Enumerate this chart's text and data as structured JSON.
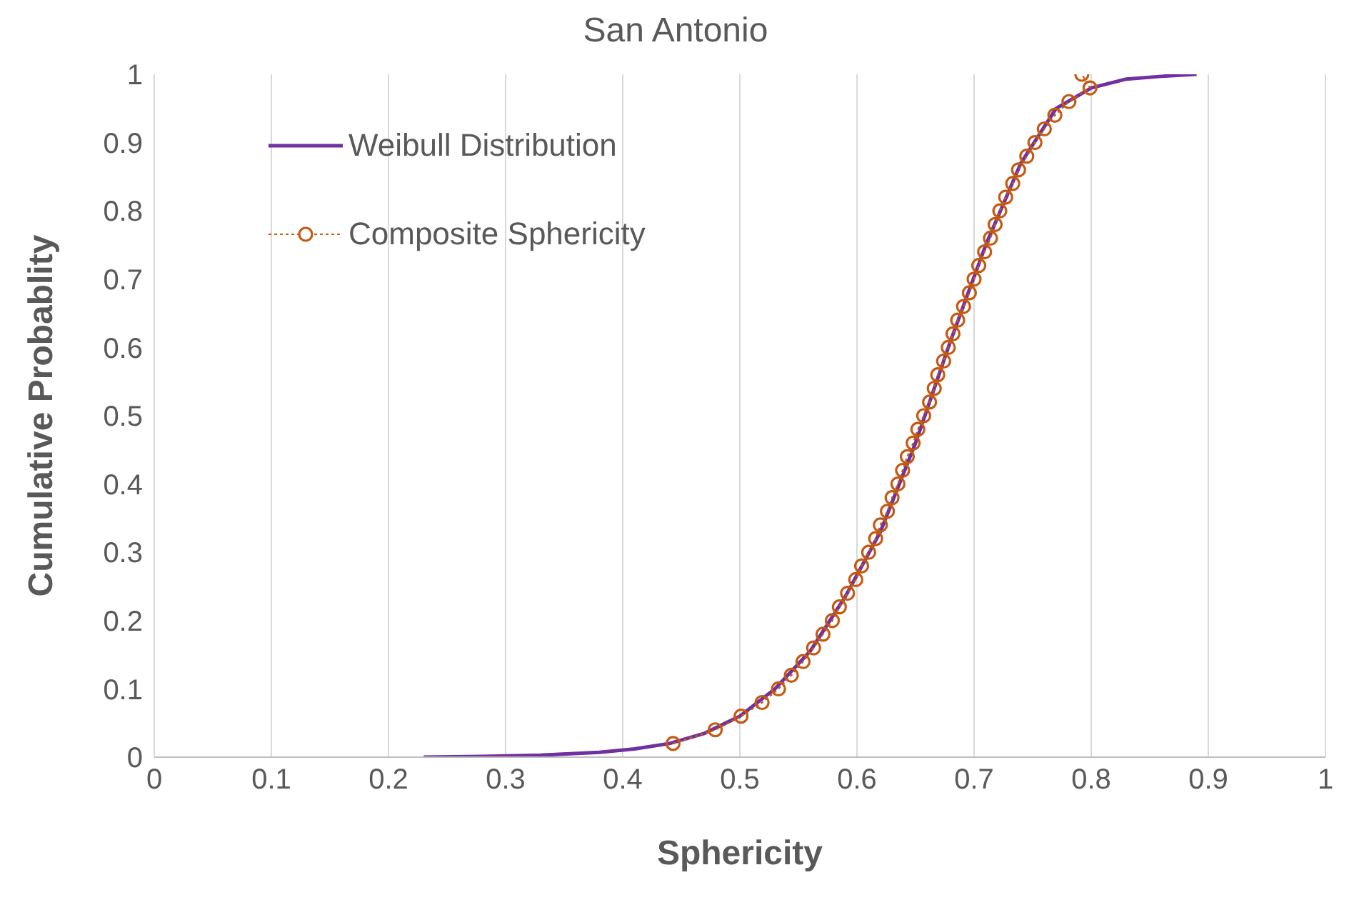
{
  "chart_data": {
    "type": "line",
    "title": "San Antonio",
    "xlabel": "Sphericity",
    "ylabel": "Cumulative Probablity",
    "xlim": [
      0,
      1
    ],
    "xticks": [
      0,
      0.1,
      0.2,
      0.3,
      0.4,
      0.5,
      0.6,
      0.7,
      0.8,
      0.9,
      1
    ],
    "ylim": [
      0,
      1
    ],
    "yticks": [
      0,
      0.1,
      0.2,
      0.3,
      0.4,
      0.5,
      0.6,
      0.7,
      0.8,
      0.9,
      1
    ],
    "grid": "x",
    "legend": "top left",
    "series": [
      {
        "name": "Weibull Distribution",
        "color": "#7030a0",
        "marker": "none",
        "line_style": "solid",
        "x": [
          0.23,
          0.28,
          0.33,
          0.38,
          0.41,
          0.44,
          0.47,
          0.5,
          0.53,
          0.56,
          0.59,
          0.62,
          0.65,
          0.68,
          0.71,
          0.74,
          0.77,
          0.8,
          0.83,
          0.86,
          0.89
        ],
        "values": [
          0,
          0.001,
          0.003,
          0.007,
          0.012,
          0.02,
          0.035,
          0.06,
          0.1,
          0.155,
          0.235,
          0.33,
          0.46,
          0.61,
          0.75,
          0.87,
          0.95,
          0.98,
          0.993,
          0.997,
          1
        ]
      },
      {
        "name": "Composite Sphericity",
        "color": "#c65911",
        "marker": "circle",
        "line_style": "dotted",
        "x": [
          0.443,
          0.479,
          0.501,
          0.519,
          0.533,
          0.544,
          0.554,
          0.563,
          0.571,
          0.579,
          0.585,
          0.592,
          0.599,
          0.604,
          0.61,
          0.616,
          0.62,
          0.626,
          0.63,
          0.635,
          0.639,
          0.643,
          0.648,
          0.652,
          0.657,
          0.662,
          0.666,
          0.669,
          0.674,
          0.678,
          0.682,
          0.686,
          0.691,
          0.696,
          0.7,
          0.704,
          0.709,
          0.714,
          0.718,
          0.722,
          0.727,
          0.733,
          0.738,
          0.745,
          0.752,
          0.76,
          0.769,
          0.781,
          0.799,
          0.792
        ],
        "values": [
          0.02,
          0.04,
          0.06,
          0.08,
          0.1,
          0.12,
          0.14,
          0.16,
          0.18,
          0.2,
          0.22,
          0.24,
          0.26,
          0.28,
          0.3,
          0.32,
          0.34,
          0.36,
          0.38,
          0.4,
          0.42,
          0.44,
          0.46,
          0.48,
          0.5,
          0.52,
          0.54,
          0.56,
          0.58,
          0.6,
          0.62,
          0.64,
          0.66,
          0.68,
          0.7,
          0.72,
          0.74,
          0.76,
          0.78,
          0.8,
          0.82,
          0.84,
          0.86,
          0.88,
          0.9,
          0.92,
          0.94,
          0.96,
          0.98,
          1
        ]
      }
    ]
  }
}
